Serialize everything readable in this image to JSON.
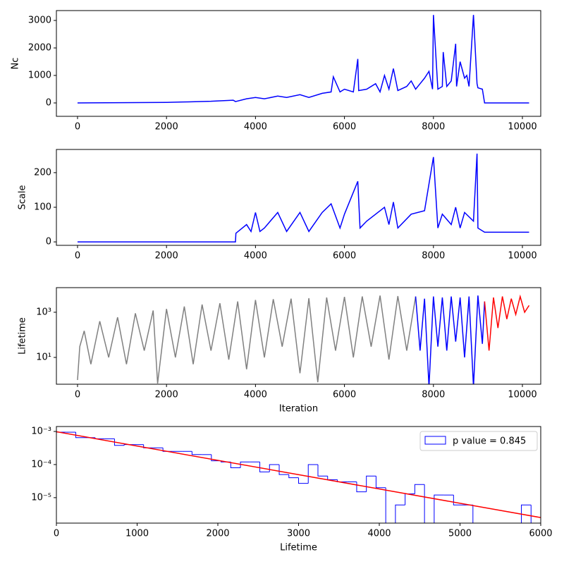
{
  "chart_data": [
    {
      "type": "line",
      "ylabel": "Nc",
      "xlim": [
        -475,
        10412
      ],
      "ylim": [
        -487,
        3359
      ],
      "xticks": [
        0,
        2000,
        4000,
        6000,
        8000,
        10000
      ],
      "yticks": [
        0,
        1000,
        2000,
        3000
      ],
      "series": [
        {
          "color": "blue",
          "x": [
            0,
            1000,
            2000,
            2500,
            3000,
            3500,
            3550,
            3800,
            4000,
            4200,
            4500,
            4700,
            5000,
            5200,
            5500,
            5700,
            5750,
            5900,
            6000,
            6200,
            6300,
            6320,
            6500,
            6700,
            6800,
            6900,
            7000,
            7100,
            7200,
            7400,
            7500,
            7600,
            7700,
            7800,
            7900,
            7980,
            8000,
            8100,
            8200,
            8220,
            8300,
            8400,
            8500,
            8520,
            8600,
            8700,
            8750,
            8800,
            8900,
            8980,
            9000,
            9100,
            9150,
            10150
          ],
          "values": [
            0,
            10,
            20,
            40,
            60,
            100,
            50,
            150,
            200,
            150,
            250,
            200,
            300,
            200,
            350,
            400,
            950,
            400,
            500,
            400,
            1600,
            450,
            500,
            700,
            400,
            1000,
            500,
            1250,
            450,
            600,
            800,
            500,
            700,
            900,
            1150,
            500,
            3200,
            500,
            600,
            1850,
            600,
            800,
            2150,
            600,
            1500,
            900,
            1000,
            600,
            3200,
            700,
            550,
            500,
            0,
            0
          ]
        }
      ]
    },
    {
      "type": "line",
      "ylabel": "Scale",
      "xlim": [
        -475,
        10412
      ],
      "ylim": [
        -10,
        267
      ],
      "xticks": [
        0,
        2000,
        4000,
        6000,
        8000,
        10000
      ],
      "yticks": [
        0,
        100,
        200
      ],
      "series": [
        {
          "color": "blue",
          "x": [
            0,
            3550,
            3560,
            3800,
            3900,
            4000,
            4100,
            4200,
            4500,
            4700,
            5000,
            5200,
            5500,
            5700,
            5900,
            6000,
            6300,
            6350,
            6500,
            6900,
            7000,
            7100,
            7200,
            7500,
            7800,
            8000,
            8100,
            8200,
            8400,
            8500,
            8600,
            8700,
            8900,
            8980,
            9000,
            9150,
            10150
          ],
          "values": [
            0,
            0,
            25,
            50,
            30,
            85,
            30,
            40,
            85,
            30,
            85,
            30,
            85,
            110,
            40,
            80,
            175,
            40,
            60,
            100,
            50,
            115,
            40,
            80,
            90,
            245,
            40,
            80,
            50,
            100,
            40,
            85,
            60,
            255,
            40,
            28,
            28
          ]
        }
      ]
    },
    {
      "type": "line",
      "ylabel": "Lifetime",
      "xlabel": "Iteration",
      "ylog": true,
      "xlim": [
        -475,
        10412
      ],
      "ylim": [
        0.65,
        12300
      ],
      "xticks": [
        0,
        2000,
        4000,
        6000,
        8000,
        10000
      ],
      "yticks": [
        {
          "value": 10,
          "label": "10¹"
        },
        {
          "value": 1000,
          "label": "10³"
        }
      ],
      "series": [
        {
          "color": "gray",
          "x": [
            0,
            50,
            150,
            300,
            500,
            700,
            900,
            1100,
            1300,
            1500,
            1700,
            1800,
            2000,
            2200,
            2400,
            2600,
            2800,
            3000,
            3200,
            3400,
            3600,
            3800,
            4000,
            4200,
            4400,
            4600,
            4800,
            5000,
            5200,
            5400,
            5600,
            5800,
            6000,
            6200,
            6400,
            6600,
            6800,
            7000,
            7200,
            7400,
            7600
          ],
          "values": [
            1,
            30,
            150,
            5,
            400,
            10,
            600,
            5,
            900,
            20,
            1200,
            0.7,
            1400,
            10,
            1800,
            5,
            2200,
            20,
            2500,
            8,
            3000,
            3,
            3500,
            10,
            3800,
            30,
            4000,
            2,
            4200,
            0.8,
            4500,
            20,
            4800,
            10,
            5000,
            30,
            5500,
            8,
            5200,
            20,
            5000
          ]
        },
        {
          "color": "blue",
          "x": [
            7600,
            7700,
            7800,
            7900,
            8000,
            8100,
            8200,
            8300,
            8400,
            8500,
            8600,
            8700,
            8800,
            8900,
            9000,
            9100,
            9150
          ],
          "values": [
            5000,
            20,
            4000,
            0.5,
            5000,
            30,
            4500,
            20,
            5000,
            50,
            4500,
            10,
            5000,
            0.5,
            5500,
            40,
            3000
          ]
        },
        {
          "color": "red",
          "x": [
            9150,
            9250,
            9350,
            9450,
            9550,
            9650,
            9750,
            9850,
            9950,
            10050,
            10150
          ],
          "values": [
            3000,
            20,
            4500,
            200,
            5000,
            500,
            4000,
            800,
            5000,
            1000,
            2000
          ]
        }
      ]
    },
    {
      "type": "histogram",
      "xlabel": "Lifetime",
      "ylog": true,
      "xlim": [
        0,
        6000
      ],
      "ylim": [
        1.7e-06,
        0.00141
      ],
      "xticks": [
        0,
        1000,
        2000,
        3000,
        4000,
        5000,
        6000
      ],
      "yticks": [
        {
          "value": 0.001,
          "label": "10⁻³"
        },
        {
          "value": 0.0001,
          "label": "10⁻⁴"
        },
        {
          "value": 1e-05,
          "label": "10⁻⁵"
        }
      ],
      "legend": "upper right",
      "bins": [
        0,
        120,
        240,
        360,
        480,
        600,
        720,
        840,
        960,
        1080,
        1200,
        1320,
        1440,
        1560,
        1680,
        1800,
        1920,
        2040,
        2160,
        2280,
        2400,
        2520,
        2640,
        2760,
        2880,
        3000,
        3120,
        3240,
        3360,
        3480,
        3600,
        3720,
        3840,
        3960,
        4080,
        4200,
        4320,
        4440,
        4560,
        4680,
        4800,
        4920,
        5040,
        5160,
        5280,
        5400,
        5520,
        5640,
        5760,
        5880,
        6000
      ],
      "series": [
        {
          "name": "p value = 0.845",
          "color": "blue",
          "values": [
            0.00095,
            0.00095,
            0.00065,
            0.00065,
            0.0006,
            0.0006,
            0.00038,
            0.0004,
            0.0004,
            0.00032,
            0.00032,
            0.00025,
            0.00025,
            0.00025,
            0.0002,
            0.0002,
            0.00013,
            0.00012,
            8e-05,
            0.00012,
            0.00012,
            6e-05,
            0.0001,
            5e-05,
            4e-05,
            2.7e-05,
            0.0001,
            4.5e-05,
            3.5e-05,
            3e-05,
            3e-05,
            1.5e-05,
            4.5e-05,
            2e-05,
            0,
            6e-06,
            1.3e-05,
            2.5e-05,
            0,
            1.2e-05,
            1.2e-05,
            6e-06,
            6e-06,
            0,
            0,
            0,
            0,
            0,
            6e-06,
            0
          ]
        }
      ],
      "fit": {
        "color": "red",
        "x": [
          0,
          6000
        ],
        "values": [
          0.00098,
          2.5e-06
        ]
      }
    }
  ]
}
